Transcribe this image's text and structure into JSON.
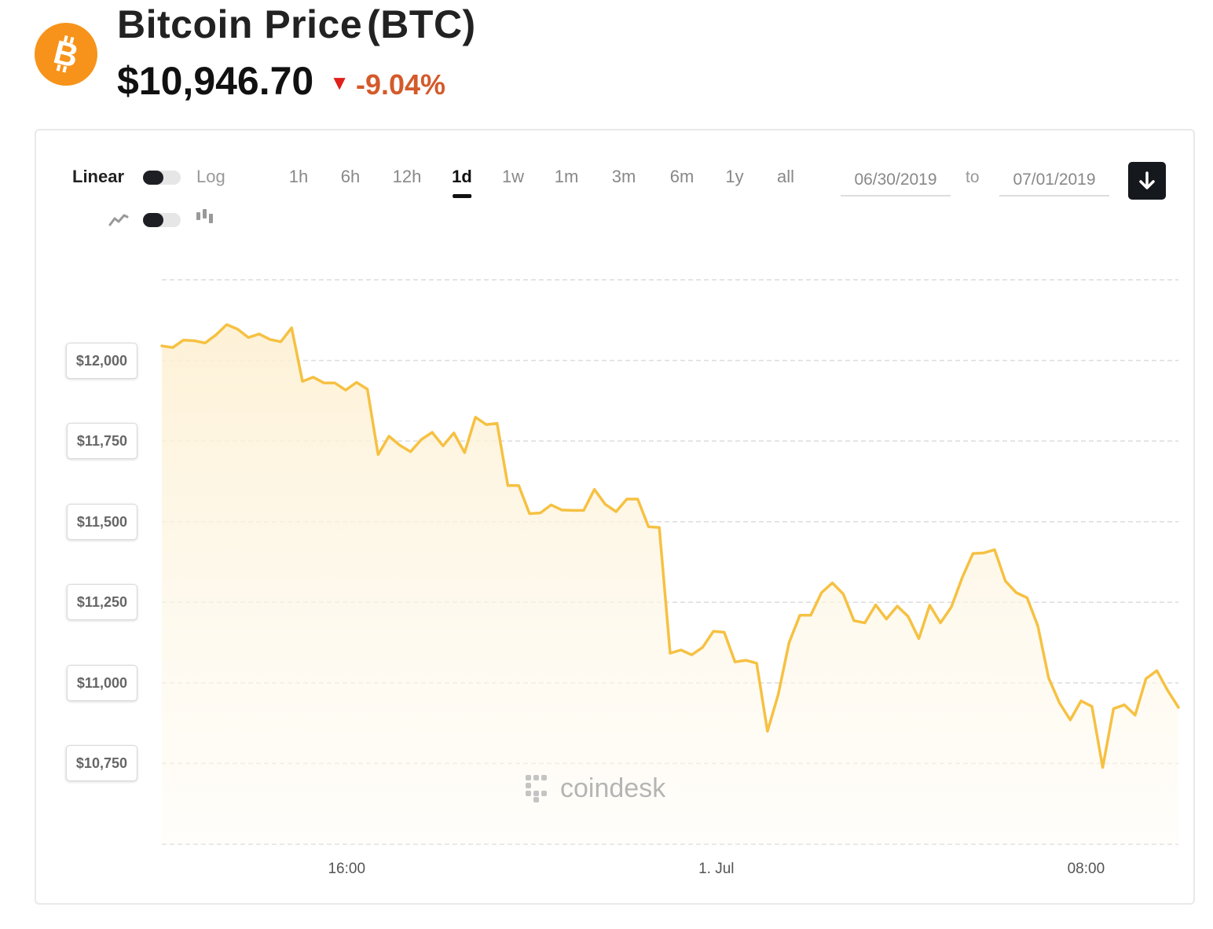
{
  "header": {
    "coin_name": "Bitcoin Price",
    "symbol": "(BTC)",
    "price": "$10,946.70",
    "change_arrow": "▼",
    "change": "-9.04%",
    "logo_icon": "bitcoin-logo-icon",
    "logo_color": "#f7931a",
    "down_color": "#e0201b"
  },
  "controls": {
    "scale_linear_label": "Linear",
    "scale_log_label": "Log",
    "scale_selected": "Linear",
    "line_chart_icon": "line-chart-icon",
    "candle_chart_icon": "candlestick-icon",
    "chart_style_selected": "line",
    "ranges": [
      "1h",
      "6h",
      "12h",
      "1d",
      "1w",
      "1m",
      "3m",
      "6m",
      "1y",
      "all"
    ],
    "active_range": "1d",
    "date_from": "06/30/2019",
    "date_to_label": "to",
    "date_to": "07/01/2019",
    "download_icon": "download-icon"
  },
  "watermark": {
    "icon": "coindesk-logo-icon",
    "text": "coindesk"
  },
  "chart_data": {
    "type": "area",
    "title": "",
    "xlabel": "",
    "ylabel": "",
    "x_ticks": [
      "16:00",
      "1. Jul",
      "08:00"
    ],
    "y_ticks": [
      "$10,750",
      "$11,000",
      "$11,250",
      "$11,500",
      "$11,750",
      "$12,000"
    ],
    "y_tick_values": [
      10750,
      11000,
      11250,
      11500,
      11750,
      12000
    ],
    "ylim": [
      10500,
      12250
    ],
    "line_color": "#f6c142",
    "grid": "horizontal dashed",
    "series": [
      {
        "values": [
          12045,
          12040,
          12063,
          12061,
          12054,
          12079,
          12111,
          12097,
          12071,
          12082,
          12065,
          12058,
          12101,
          11935,
          11948,
          11930,
          11930,
          11908,
          11932,
          11911,
          11708,
          11765,
          11737,
          11717,
          11755,
          11777,
          11735,
          11775,
          11714,
          11824,
          11801,
          11805,
          11612,
          11612,
          11525,
          11527,
          11552,
          11536,
          11535,
          11535,
          11600,
          11554,
          11531,
          11570,
          11570,
          11484,
          11482,
          11092,
          11102,
          11087,
          11110,
          11160,
          11157,
          11065,
          11070,
          11061,
          10850,
          10965,
          11125,
          11210,
          11210,
          11280,
          11310,
          11276,
          11193,
          11186,
          11242,
          11198,
          11238,
          11206,
          11137,
          11241,
          11186,
          11235,
          11326,
          11401,
          11403,
          11413,
          11316,
          11280,
          11264,
          11177,
          11015,
          10938,
          10885,
          10944,
          10927,
          10738,
          10920,
          10932,
          10900,
          11013,
          11038,
          10977,
          10924
        ]
      }
    ]
  }
}
